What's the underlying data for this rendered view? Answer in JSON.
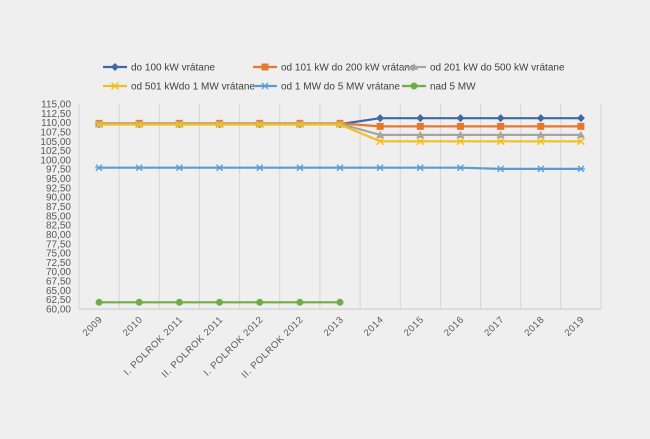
{
  "chart_data": {
    "type": "line",
    "title": "",
    "xlabel": "",
    "ylabel": "",
    "categories": [
      "2009",
      "2010",
      "I. POLROK 2011",
      "II. POLROK 2011",
      "I. POLROK 2012",
      "II. POLROK 2012",
      "2013",
      "2014",
      "2015",
      "2016",
      "2017",
      "2018",
      "2019"
    ],
    "ylim": [
      60,
      115
    ],
    "ytick_step": 2.5,
    "ytick_labels": [
      "60,00",
      "62,50",
      "65,00",
      "67,50",
      "70,00",
      "72,50",
      "75,00",
      "77,50",
      "80,00",
      "82,50",
      "85,00",
      "87,50",
      "90,00",
      "92,50",
      "95,00",
      "97,50",
      "100,00",
      "102,50",
      "105,00",
      "107,50",
      "110,00",
      "112,50",
      "115,00"
    ],
    "grid": "vertical",
    "legend_position": "top",
    "series": [
      {
        "name": "do 100 kW vrátane",
        "color": "#4068a8",
        "marker": "diamond",
        "values": [
          109.6,
          109.6,
          109.6,
          109.6,
          109.6,
          109.6,
          109.6,
          111.2,
          111.2,
          111.2,
          111.2,
          111.2,
          111.2
        ]
      },
      {
        "name": "od 101 kW do 200 kW vrátane",
        "color": "#e8772e",
        "marker": "square",
        "values": [
          109.8,
          109.8,
          109.8,
          109.8,
          109.8,
          109.8,
          109.8,
          109.0,
          109.0,
          109.0,
          109.0,
          109.0,
          109.0
        ]
      },
      {
        "name": "od 201 kW do 500 kW vrátane",
        "color": "#a5a5a5",
        "marker": "triangle",
        "values": [
          109.7,
          109.7,
          109.7,
          109.7,
          109.7,
          109.7,
          109.7,
          106.7,
          106.7,
          106.7,
          106.7,
          106.7,
          106.7
        ]
      },
      {
        "name": "od 501 kWdo 1 MW vrátane",
        "color": "#f2bf1f",
        "marker": "x",
        "values": [
          109.5,
          109.5,
          109.5,
          109.5,
          109.5,
          109.5,
          109.5,
          105.0,
          105.0,
          105.0,
          105.0,
          105.0,
          105.0
        ]
      },
      {
        "name": "od 1 MW do 5 MW vrátane",
        "color": "#5b9bd5",
        "marker": "star",
        "values": [
          97.9,
          97.9,
          97.9,
          97.9,
          97.9,
          97.9,
          97.9,
          97.9,
          97.9,
          97.9,
          97.6,
          97.6,
          97.6
        ]
      },
      {
        "name": "nad 5 MW",
        "color": "#70ad47",
        "marker": "circle",
        "values": [
          61.8,
          61.8,
          61.8,
          61.8,
          61.8,
          61.8,
          61.8,
          null,
          null,
          null,
          null,
          null,
          null
        ]
      }
    ]
  }
}
